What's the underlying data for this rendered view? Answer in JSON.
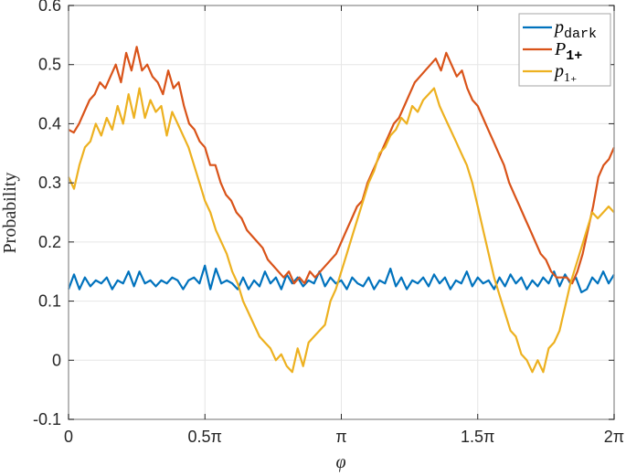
{
  "chart_data": {
    "type": "line",
    "title": "",
    "xlabel": "φ",
    "ylabel": "Probability",
    "xlim": [
      0,
      6.2832
    ],
    "ylim": [
      -0.1,
      0.6
    ],
    "grid": true,
    "legend_position": "upper right",
    "x_ticks": [
      {
        "value": 0,
        "label": "0"
      },
      {
        "value": 1.5708,
        "label": "0.5π"
      },
      {
        "value": 3.1416,
        "label": "π"
      },
      {
        "value": 4.7124,
        "label": "1.5π"
      },
      {
        "value": 6.2832,
        "label": "2π"
      }
    ],
    "y_ticks": [
      {
        "value": 0.6,
        "label": "0.6"
      },
      {
        "value": 0.5,
        "label": "0.5"
      },
      {
        "value": 0.4,
        "label": "0.4"
      },
      {
        "value": 0.3,
        "label": "0.3"
      },
      {
        "value": 0.2,
        "label": "0.2"
      },
      {
        "value": 0.1,
        "label": "0.1"
      },
      {
        "value": 0,
        "label": "0"
      },
      {
        "value": -0.1,
        "label": "-0.1"
      }
    ],
    "x_units": "fraction of 2π (0 to 1 across 101 samples)",
    "series": [
      {
        "name": "p_dark",
        "legend_main": "p",
        "legend_sub": "dark",
        "color": "#0072BD",
        "values": [
          0.12,
          0.145,
          0.12,
          0.14,
          0.125,
          0.135,
          0.13,
          0.14,
          0.12,
          0.135,
          0.13,
          0.15,
          0.125,
          0.15,
          0.13,
          0.135,
          0.125,
          0.135,
          0.13,
          0.14,
          0.135,
          0.12,
          0.135,
          0.14,
          0.13,
          0.16,
          0.12,
          0.155,
          0.13,
          0.135,
          0.13,
          0.12,
          0.14,
          0.12,
          0.135,
          0.125,
          0.15,
          0.13,
          0.14,
          0.12,
          0.145,
          0.13,
          0.14,
          0.125,
          0.135,
          0.13,
          0.15,
          0.125,
          0.14,
          0.13,
          0.135,
          0.12,
          0.14,
          0.13,
          0.125,
          0.14,
          0.12,
          0.135,
          0.13,
          0.155,
          0.125,
          0.14,
          0.12,
          0.135,
          0.13,
          0.14,
          0.125,
          0.145,
          0.13,
          0.14,
          0.12,
          0.135,
          0.13,
          0.15,
          0.125,
          0.14,
          0.13,
          0.135,
          0.12,
          0.14,
          0.125,
          0.145,
          0.13,
          0.14,
          0.12,
          0.135,
          0.125,
          0.14,
          0.13,
          0.15,
          0.125,
          0.145,
          0.13,
          0.14,
          0.115,
          0.12,
          0.14,
          0.13,
          0.15,
          0.13,
          0.145
        ]
      },
      {
        "name": "P_1+",
        "legend_main": "P",
        "legend_sub": "1+",
        "color": "#D95319",
        "values": [
          0.39,
          0.385,
          0.4,
          0.42,
          0.44,
          0.45,
          0.47,
          0.46,
          0.48,
          0.5,
          0.47,
          0.52,
          0.49,
          0.53,
          0.49,
          0.5,
          0.48,
          0.47,
          0.45,
          0.49,
          0.46,
          0.47,
          0.43,
          0.4,
          0.39,
          0.37,
          0.36,
          0.33,
          0.33,
          0.3,
          0.28,
          0.27,
          0.25,
          0.24,
          0.22,
          0.21,
          0.2,
          0.19,
          0.17,
          0.16,
          0.15,
          0.14,
          0.15,
          0.13,
          0.14,
          0.13,
          0.15,
          0.14,
          0.15,
          0.16,
          0.17,
          0.18,
          0.2,
          0.22,
          0.24,
          0.26,
          0.27,
          0.3,
          0.32,
          0.34,
          0.36,
          0.38,
          0.4,
          0.41,
          0.43,
          0.45,
          0.47,
          0.48,
          0.49,
          0.5,
          0.51,
          0.49,
          0.52,
          0.5,
          0.48,
          0.49,
          0.46,
          0.44,
          0.43,
          0.41,
          0.39,
          0.37,
          0.35,
          0.33,
          0.3,
          0.28,
          0.26,
          0.24,
          0.22,
          0.2,
          0.18,
          0.17,
          0.15,
          0.14,
          0.14,
          0.14,
          0.13,
          0.15,
          0.18,
          0.22,
          0.26,
          0.31,
          0.33,
          0.34,
          0.36
        ]
      },
      {
        "name": "p_1+",
        "legend_main": "p",
        "legend_sub": "1+",
        "color": "#EDB120",
        "values": [
          0.31,
          0.29,
          0.33,
          0.36,
          0.37,
          0.4,
          0.38,
          0.41,
          0.39,
          0.43,
          0.4,
          0.45,
          0.41,
          0.46,
          0.41,
          0.44,
          0.42,
          0.43,
          0.38,
          0.42,
          0.4,
          0.38,
          0.36,
          0.33,
          0.3,
          0.27,
          0.25,
          0.22,
          0.2,
          0.18,
          0.15,
          0.13,
          0.1,
          0.08,
          0.06,
          0.04,
          0.03,
          0.02,
          0.0,
          0.01,
          -0.01,
          -0.02,
          0.02,
          -0.01,
          0.03,
          0.04,
          0.05,
          0.06,
          0.1,
          0.12,
          0.15,
          0.18,
          0.21,
          0.24,
          0.27,
          0.3,
          0.32,
          0.35,
          0.36,
          0.38,
          0.39,
          0.41,
          0.4,
          0.43,
          0.42,
          0.44,
          0.45,
          0.46,
          0.43,
          0.41,
          0.39,
          0.37,
          0.35,
          0.33,
          0.3,
          0.26,
          0.22,
          0.18,
          0.14,
          0.11,
          0.08,
          0.05,
          0.04,
          0.01,
          0.0,
          -0.02,
          0.0,
          -0.02,
          0.02,
          0.03,
          0.05,
          0.09,
          0.13,
          0.16,
          0.19,
          0.22,
          0.25,
          0.24,
          0.25,
          0.26,
          0.25
        ]
      }
    ]
  },
  "axes": {
    "xlabel": "φ",
    "ylabel": "Probability"
  },
  "legend": {
    "items": [
      {
        "main": "p",
        "sub": "dark",
        "color": "#0072BD"
      },
      {
        "main": "P",
        "sub": "1+",
        "color": "#D95319"
      },
      {
        "main": "p",
        "sub": "1₊",
        "color": "#EDB120"
      }
    ]
  }
}
